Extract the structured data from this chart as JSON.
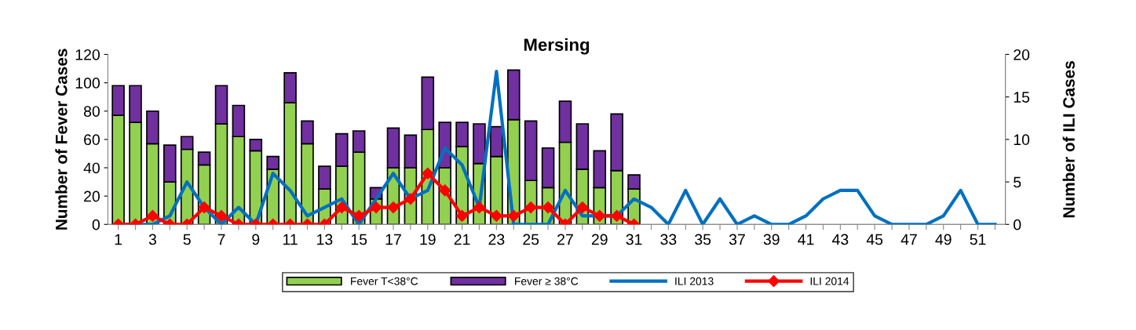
{
  "chart_data": {
    "type": "bar",
    "title": "Mersing",
    "ylabel": "Number of Fever Cases",
    "y2label": "Number of ILI Cases",
    "stacked": true,
    "categories": [
      "1",
      null,
      "3",
      null,
      "5",
      null,
      "7",
      null,
      "9",
      null,
      "11",
      null,
      "13",
      null,
      "15",
      null,
      "17",
      null,
      "19",
      null,
      "21",
      null,
      "23",
      null,
      "25",
      null,
      "27",
      null,
      "29",
      null,
      "31",
      null,
      "33",
      null,
      "35",
      null,
      "37",
      null,
      "39",
      null,
      "41",
      null,
      "43",
      null,
      "45",
      null,
      "47",
      null,
      "49",
      null,
      "51",
      null
    ],
    "ylim": [
      0,
      120
    ],
    "yticks": [
      0,
      20,
      40,
      60,
      80,
      100,
      120
    ],
    "y2lim": [
      0,
      20
    ],
    "y2ticks": [
      0,
      5,
      10,
      15,
      20
    ],
    "grid": false,
    "legend": "bottom",
    "series": [
      {
        "name": "Fever T<38°C",
        "color": "#92d050",
        "values": [
          77,
          72,
          57,
          30,
          53,
          42,
          71,
          62,
          52,
          39,
          86,
          57,
          25,
          41,
          51,
          18,
          40,
          40,
          67,
          40,
          55,
          43,
          48,
          74,
          31,
          26,
          58,
          39,
          26,
          38,
          25,
          null,
          null,
          null,
          null,
          null,
          null,
          null,
          null,
          null,
          null,
          null,
          null,
          null,
          null,
          null,
          null,
          null,
          null,
          null,
          null,
          null
        ]
      },
      {
        "name": "Fever ≥ 38°C",
        "color": "#7030a0",
        "values": [
          21,
          26,
          23,
          26,
          9,
          9,
          27,
          22,
          8,
          9,
          21,
          16,
          16,
          23,
          15,
          8,
          28,
          23,
          37,
          32,
          17,
          28,
          21,
          35,
          42,
          28,
          29,
          32,
          26,
          40,
          10,
          null,
          null,
          null,
          null,
          null,
          null,
          null,
          null,
          null,
          null,
          null,
          null,
          null,
          null,
          null,
          null,
          null,
          null,
          null,
          null,
          null
        ]
      },
      {
        "name": "ILI 2013",
        "type": "line",
        "axis": "y2",
        "color": "#0070c0",
        "marker": "none",
        "values": [
          0,
          0,
          0,
          1,
          5,
          2,
          0,
          2,
          0,
          6,
          4,
          1,
          2,
          3,
          0,
          3,
          6,
          3,
          4,
          9,
          7,
          2,
          18,
          0,
          0,
          0,
          4,
          1,
          1,
          1,
          3,
          2,
          0,
          4,
          0,
          3,
          0,
          1,
          0,
          0,
          1,
          3,
          4,
          4,
          1,
          0,
          0,
          0,
          1,
          4,
          0,
          0
        ]
      },
      {
        "name": "ILI 2014",
        "type": "line",
        "axis": "y2",
        "color": "#ff0000",
        "marker": "diamond",
        "values": [
          0,
          0,
          1,
          0,
          0,
          2,
          1,
          0,
          0,
          0,
          0,
          0,
          0,
          2,
          1,
          2,
          2,
          3,
          6,
          4,
          1,
          2,
          1,
          1,
          2,
          2,
          0,
          2,
          1,
          1,
          0,
          null,
          null,
          null,
          null,
          null,
          null,
          null,
          null,
          null,
          null,
          null,
          null,
          null,
          null,
          null,
          null,
          null,
          null,
          null,
          null,
          null
        ]
      }
    ]
  }
}
